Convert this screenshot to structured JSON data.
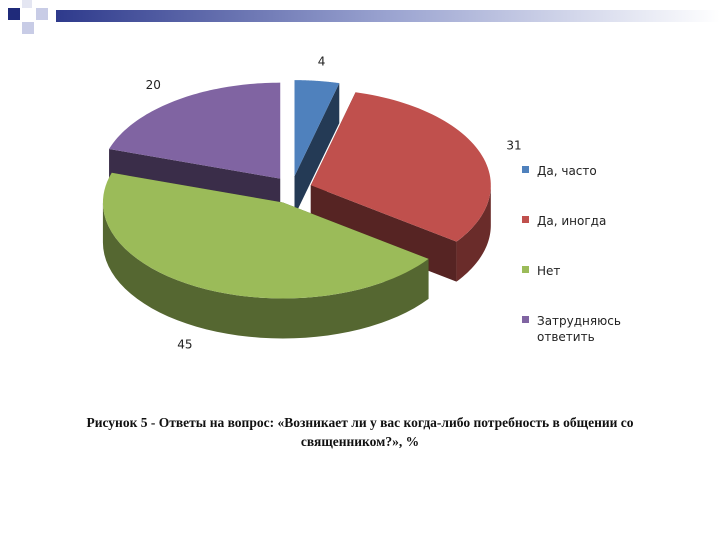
{
  "chart_data": {
    "type": "pie3d",
    "categories": [
      "Да, часто",
      "Да, иногда",
      "Нет",
      "Затрудняюсь ответить"
    ],
    "values": [
      4,
      31,
      45,
      20
    ],
    "colors": [
      "#4f81bd",
      "#c0504d",
      "#9bbb59",
      "#8064a2"
    ],
    "legend": "right",
    "caption": "Рисунок 5 - Ответы на вопрос: «Возникает ли у вас когда-либо потребность в общении со священником?», %"
  }
}
